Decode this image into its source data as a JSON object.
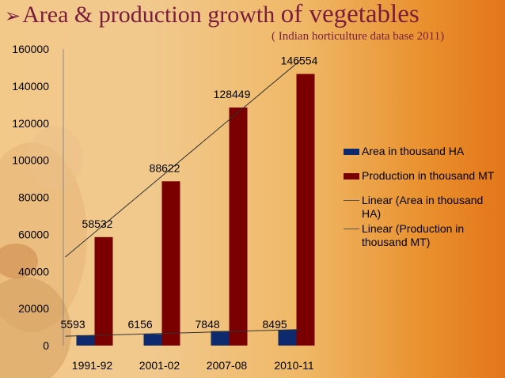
{
  "slide": {
    "arrow": "➢",
    "title_main": "Area & production growth ",
    "title_emph": "of vegetables",
    "subtitle": "( Indian horticulture data base 2011)"
  },
  "colors": {
    "area": "#0d2a6e",
    "production": "#7a0000",
    "trend": "#333333",
    "title": "#7a1d3c"
  },
  "chart_data": {
    "type": "bar",
    "categories": [
      "1991-92",
      "2001-02",
      "2007-08",
      "2010-11"
    ],
    "series": [
      {
        "name": "Area in thousand HA",
        "values": [
          5593,
          6156,
          7848,
          8495
        ]
      },
      {
        "name": "Production in thousand MT",
        "values": [
          58532,
          88622,
          128449,
          146554
        ]
      }
    ],
    "trendlines": [
      {
        "name": "Linear (Area in thousand HA)",
        "series": 0
      },
      {
        "name": "Linear (Production in thousand MT)",
        "series": 1
      }
    ],
    "yticks": [
      0,
      20000,
      40000,
      60000,
      80000,
      100000,
      120000,
      140000,
      160000
    ],
    "ylim": [
      0,
      160000
    ],
    "legend_position": "right"
  }
}
